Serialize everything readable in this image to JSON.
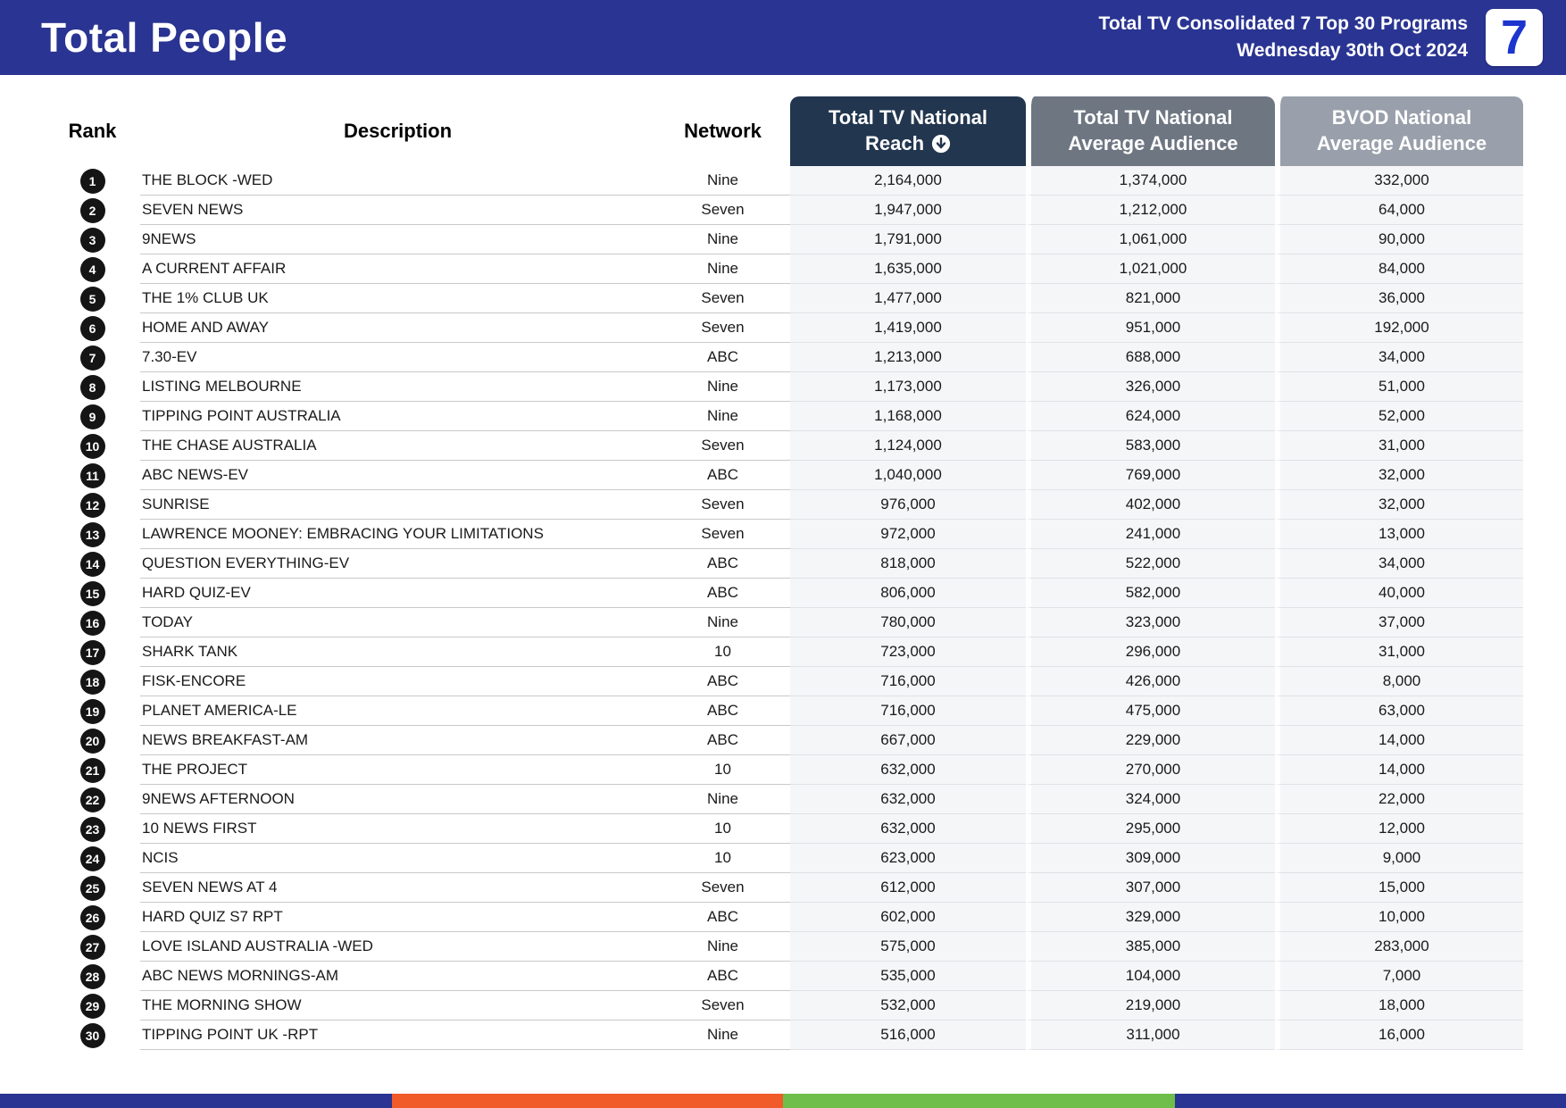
{
  "header": {
    "title": "Total People",
    "subtitle_line1": "Total TV Consolidated 7 Top 30 Programs",
    "subtitle_line2": "Wednesday 30th Oct 2024",
    "logo_text": "7"
  },
  "chart_data": {
    "type": "table",
    "title": "Total People",
    "subtitle": "Total TV Consolidated 7 Top 30 Programs — Wednesday 30th Oct 2024",
    "sort": {
      "column": "reach",
      "direction": "desc"
    },
    "columns": {
      "rank": "Rank",
      "description": "Description",
      "network": "Network",
      "reach_line1": "Total TV National",
      "reach_line2": "Reach",
      "avg_line1": "Total TV National",
      "avg_line2": "Average Audience",
      "bvod_line1": "BVOD National",
      "bvod_line2": "Average Audience"
    },
    "rows": [
      {
        "rank": "1",
        "description": "THE BLOCK -WED",
        "network": "Nine",
        "reach": "2,164,000",
        "avg": "1,374,000",
        "bvod": "332,000"
      },
      {
        "rank": "2",
        "description": "SEVEN NEWS",
        "network": "Seven",
        "reach": "1,947,000",
        "avg": "1,212,000",
        "bvod": "64,000"
      },
      {
        "rank": "3",
        "description": "9NEWS",
        "network": "Nine",
        "reach": "1,791,000",
        "avg": "1,061,000",
        "bvod": "90,000"
      },
      {
        "rank": "4",
        "description": "A CURRENT AFFAIR",
        "network": "Nine",
        "reach": "1,635,000",
        "avg": "1,021,000",
        "bvod": "84,000"
      },
      {
        "rank": "5",
        "description": "THE 1% CLUB UK",
        "network": "Seven",
        "reach": "1,477,000",
        "avg": "821,000",
        "bvod": "36,000"
      },
      {
        "rank": "6",
        "description": "HOME AND AWAY",
        "network": "Seven",
        "reach": "1,419,000",
        "avg": "951,000",
        "bvod": "192,000"
      },
      {
        "rank": "7",
        "description": "7.30-EV",
        "network": "ABC",
        "reach": "1,213,000",
        "avg": "688,000",
        "bvod": "34,000"
      },
      {
        "rank": "8",
        "description": "LISTING MELBOURNE",
        "network": "Nine",
        "reach": "1,173,000",
        "avg": "326,000",
        "bvod": "51,000"
      },
      {
        "rank": "9",
        "description": "TIPPING POINT AUSTRALIA",
        "network": "Nine",
        "reach": "1,168,000",
        "avg": "624,000",
        "bvod": "52,000"
      },
      {
        "rank": "10",
        "description": "THE CHASE AUSTRALIA",
        "network": "Seven",
        "reach": "1,124,000",
        "avg": "583,000",
        "bvod": "31,000"
      },
      {
        "rank": "11",
        "description": "ABC NEWS-EV",
        "network": "ABC",
        "reach": "1,040,000",
        "avg": "769,000",
        "bvod": "32,000"
      },
      {
        "rank": "12",
        "description": "SUNRISE",
        "network": "Seven",
        "reach": "976,000",
        "avg": "402,000",
        "bvod": "32,000"
      },
      {
        "rank": "13",
        "description": "LAWRENCE MOONEY: EMBRACING YOUR LIMITATIONS",
        "network": "Seven",
        "reach": "972,000",
        "avg": "241,000",
        "bvod": "13,000"
      },
      {
        "rank": "14",
        "description": "QUESTION EVERYTHING-EV",
        "network": "ABC",
        "reach": "818,000",
        "avg": "522,000",
        "bvod": "34,000"
      },
      {
        "rank": "15",
        "description": "HARD QUIZ-EV",
        "network": "ABC",
        "reach": "806,000",
        "avg": "582,000",
        "bvod": "40,000"
      },
      {
        "rank": "16",
        "description": "TODAY",
        "network": "Nine",
        "reach": "780,000",
        "avg": "323,000",
        "bvod": "37,000"
      },
      {
        "rank": "17",
        "description": "SHARK TANK",
        "network": "10",
        "reach": "723,000",
        "avg": "296,000",
        "bvod": "31,000"
      },
      {
        "rank": "18",
        "description": "FISK-ENCORE",
        "network": "ABC",
        "reach": "716,000",
        "avg": "426,000",
        "bvod": "8,000"
      },
      {
        "rank": "19",
        "description": "PLANET AMERICA-LE",
        "network": "ABC",
        "reach": "716,000",
        "avg": "475,000",
        "bvod": "63,000"
      },
      {
        "rank": "20",
        "description": "NEWS BREAKFAST-AM",
        "network": "ABC",
        "reach": "667,000",
        "avg": "229,000",
        "bvod": "14,000"
      },
      {
        "rank": "21",
        "description": "THE PROJECT",
        "network": "10",
        "reach": "632,000",
        "avg": "270,000",
        "bvod": "14,000"
      },
      {
        "rank": "22",
        "description": "9NEWS AFTERNOON",
        "network": "Nine",
        "reach": "632,000",
        "avg": "324,000",
        "bvod": "22,000"
      },
      {
        "rank": "23",
        "description": "10 NEWS FIRST",
        "network": "10",
        "reach": "632,000",
        "avg": "295,000",
        "bvod": "12,000"
      },
      {
        "rank": "24",
        "description": "NCIS",
        "network": "10",
        "reach": "623,000",
        "avg": "309,000",
        "bvod": "9,000"
      },
      {
        "rank": "25",
        "description": "SEVEN NEWS AT 4",
        "network": "Seven",
        "reach": "612,000",
        "avg": "307,000",
        "bvod": "15,000"
      },
      {
        "rank": "26",
        "description": "HARD QUIZ S7 RPT",
        "network": "ABC",
        "reach": "602,000",
        "avg": "329,000",
        "bvod": "10,000"
      },
      {
        "rank": "27",
        "description": "LOVE ISLAND AUSTRALIA -WED",
        "network": "Nine",
        "reach": "575,000",
        "avg": "385,000",
        "bvod": "283,000"
      },
      {
        "rank": "28",
        "description": "ABC NEWS MORNINGS-AM",
        "network": "ABC",
        "reach": "535,000",
        "avg": "104,000",
        "bvod": "7,000"
      },
      {
        "rank": "29",
        "description": "THE MORNING SHOW",
        "network": "Seven",
        "reach": "532,000",
        "avg": "219,000",
        "bvod": "18,000"
      },
      {
        "rank": "30",
        "description": "TIPPING POINT UK -RPT",
        "network": "Nine",
        "reach": "516,000",
        "avg": "311,000",
        "bvod": "16,000"
      }
    ]
  },
  "colors": {
    "top_bar": "#2a3492",
    "logo_blue": "#1c35cf",
    "reach_header": "#22364f",
    "avg_header": "#6e7682",
    "bvod_header": "#99a0ab",
    "numeric_column_bg": "#f5f6f8",
    "rank_badge": "#151515",
    "stripe": [
      "#2a3492",
      "#f15a29",
      "#6fbe4b",
      "#2a3492"
    ]
  }
}
